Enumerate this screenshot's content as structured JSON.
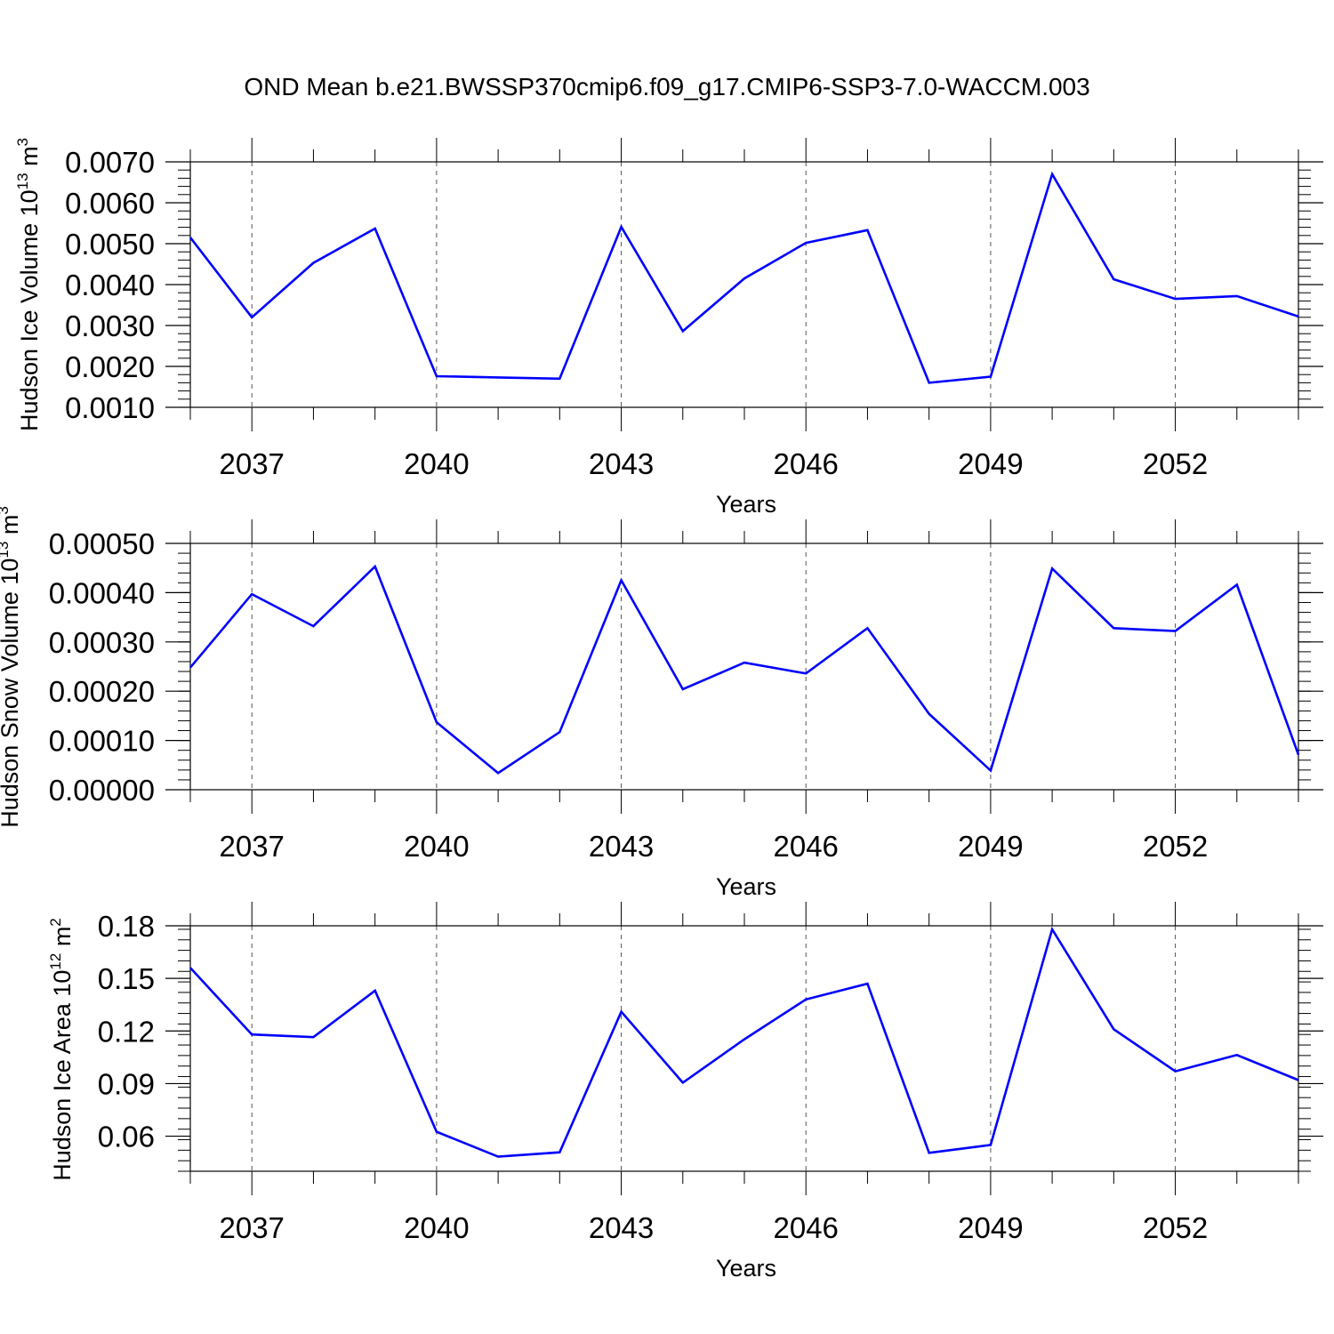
{
  "title": "OND Mean b.e21.BWSSP370cmip6.f09_g17.CMIP6-SSP3-7.0-WACCM.003",
  "colors": {
    "line": "#0000ff",
    "axis": "#000000",
    "grid": "#555555"
  },
  "chart_data": [
    {
      "type": "line",
      "xlabel": "Years",
      "ylabel_main": "Hudson Ice Volume 10",
      "ylabel_exp": "13",
      "ylabel_unit": " m",
      "ylabel_unit_exp": "3",
      "xlim": [
        2036,
        2054
      ],
      "ylim": [
        0.001,
        0.007
      ],
      "yticks": [
        0.001,
        0.002,
        0.003,
        0.004,
        0.005,
        0.006,
        0.007
      ],
      "ytick_labels": [
        "0.0010",
        "0.0020",
        "0.0030",
        "0.0040",
        "0.0050",
        "0.0060",
        "0.0070"
      ],
      "xticks": [
        2037,
        2040,
        2043,
        2046,
        2049,
        2052
      ],
      "xtick_labels": [
        "2037",
        "2040",
        "2043",
        "2046",
        "2049",
        "2052"
      ],
      "grid": "vertical dashed at major x ticks",
      "x": [
        2036,
        2037,
        2038,
        2039,
        2040,
        2041,
        2042,
        2043,
        2044,
        2045,
        2046,
        2047,
        2048,
        2049,
        2050,
        2051,
        2052,
        2053,
        2054
      ],
      "series": [
        {
          "values": [
            0.00515,
            0.0032,
            0.00453,
            0.00537,
            0.00176,
            0.00173,
            0.0017,
            0.00541,
            0.00286,
            0.00415,
            0.00502,
            0.00533,
            0.0016,
            0.00175,
            0.0067,
            0.00413,
            0.00365,
            0.00372,
            0.00322
          ]
        }
      ]
    },
    {
      "type": "line",
      "xlabel": "Years",
      "ylabel_main": "Hudson Snow Volume 10",
      "ylabel_exp": "13",
      "ylabel_unit": " m",
      "ylabel_unit_exp": "3",
      "xlim": [
        2036,
        2054
      ],
      "ylim": [
        0.0,
        0.0005
      ],
      "yticks": [
        0.0,
        0.0001,
        0.0002,
        0.0003,
        0.0004,
        0.0005
      ],
      "ytick_labels": [
        "0.00000",
        "0.00010",
        "0.00020",
        "0.00030",
        "0.00040",
        "0.00050"
      ],
      "xticks": [
        2037,
        2040,
        2043,
        2046,
        2049,
        2052
      ],
      "xtick_labels": [
        "2037",
        "2040",
        "2043",
        "2046",
        "2049",
        "2052"
      ],
      "grid": "vertical dashed at major x ticks",
      "x": [
        2036,
        2037,
        2038,
        2039,
        2040,
        2041,
        2042,
        2043,
        2044,
        2045,
        2046,
        2047,
        2048,
        2049,
        2050,
        2051,
        2052,
        2053,
        2054
      ],
      "series": [
        {
          "values": [
            0.000248,
            0.000397,
            0.000332,
            0.000453,
            0.000137,
            3.4e-05,
            0.000117,
            0.000425,
            0.000204,
            0.000258,
            0.000236,
            0.000328,
            0.000154,
            3.9e-05,
            0.000449,
            0.000328,
            0.000322,
            0.000416,
            7.1e-05
          ]
        }
      ]
    },
    {
      "type": "line",
      "xlabel": "Years",
      "ylabel_main": "Hudson Ice Area 10",
      "ylabel_exp": "12",
      "ylabel_unit": " m",
      "ylabel_unit_exp": "2",
      "xlim": [
        2036,
        2054
      ],
      "ylim": [
        0.04,
        0.18
      ],
      "yticks": [
        0.06,
        0.09,
        0.12,
        0.15,
        0.18
      ],
      "ytick_labels": [
        "0.06",
        "0.09",
        "0.12",
        "0.15",
        "0.18"
      ],
      "xticks": [
        2037,
        2040,
        2043,
        2046,
        2049,
        2052
      ],
      "xtick_labels": [
        "2037",
        "2040",
        "2043",
        "2046",
        "2049",
        "2052"
      ],
      "grid": "vertical dashed at major x ticks",
      "x": [
        2036,
        2037,
        2038,
        2039,
        2040,
        2041,
        2042,
        2043,
        2044,
        2045,
        2046,
        2047,
        2048,
        2049,
        2050,
        2051,
        2052,
        2053,
        2054
      ],
      "series": [
        {
          "values": [
            0.156,
            0.118,
            0.1165,
            0.143,
            0.0625,
            0.0483,
            0.0508,
            0.131,
            0.0905,
            0.1153,
            0.138,
            0.147,
            0.0505,
            0.055,
            0.178,
            0.121,
            0.097,
            0.1063,
            0.092
          ]
        }
      ]
    }
  ]
}
